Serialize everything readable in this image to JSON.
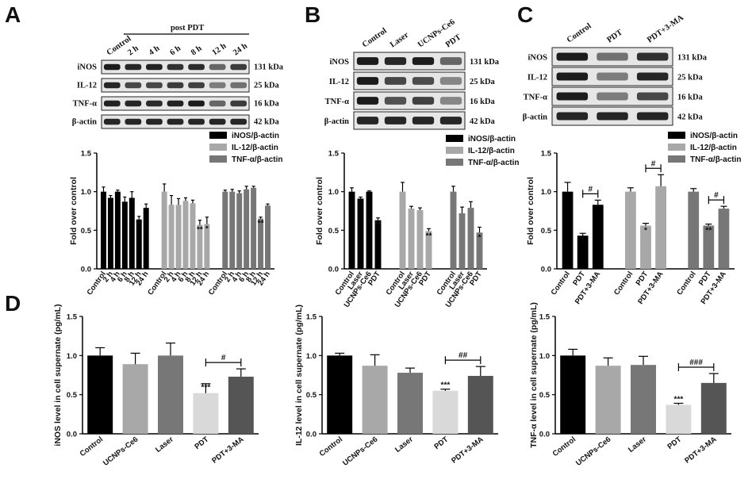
{
  "panel_labels": {
    "a": "A",
    "b": "B",
    "c": "C",
    "d": "D"
  },
  "blots": {
    "a": {
      "lanes": [
        "Control",
        "2 h",
        "4 h",
        "6 h",
        "8 h",
        "12 h",
        "24 h"
      ],
      "group_label": "post PDT",
      "rows": [
        {
          "name": "iNOS",
          "kda": "131 kDa"
        },
        {
          "name": "IL-12",
          "kda": "25 kDa"
        },
        {
          "name": "TNF-α",
          "kda": "16 kDa"
        },
        {
          "name": "β-actin",
          "kda": "42 kDa"
        }
      ]
    },
    "b": {
      "lanes": [
        "Control",
        "Laser",
        "UCNPs-Ce6",
        "PDT"
      ],
      "rows": [
        {
          "name": "iNOS",
          "kda": "131 kDa"
        },
        {
          "name": "IL-12",
          "kda": "25 kDa"
        },
        {
          "name": "TNF-α",
          "kda": "16 kDa"
        },
        {
          "name": "β-actin",
          "kda": "42 kDa"
        }
      ]
    },
    "c": {
      "lanes": [
        "Control",
        "PDT",
        "PDT+3-MA"
      ],
      "rows": [
        {
          "name": "iNOS",
          "kda": "131 kDa"
        },
        {
          "name": "IL-12",
          "kda": "25 kDa"
        },
        {
          "name": "TNF-α",
          "kda": "16 kDa"
        },
        {
          "name": "β-actin",
          "kda": "42 kDa"
        }
      ]
    }
  },
  "chart_data": [
    {
      "id": "A",
      "type": "bar",
      "ylabel": "Fold over control",
      "ylim": [
        0,
        1.5
      ],
      "yticks": [
        "0.0",
        "0.5",
        "1.0",
        "1.5"
      ],
      "legend": [
        "iNOS/β-actin",
        "IL-12/β-actin",
        "TNF-α/β-actin"
      ],
      "categories": [
        "Control",
        "2 h",
        "4 h",
        "6 h",
        "8 h",
        "12 h",
        "24 h"
      ],
      "series": [
        {
          "name": "iNOS/β-actin",
          "color": "#000000",
          "values": [
            1.0,
            0.92,
            1.0,
            0.87,
            0.92,
            0.64,
            0.79
          ],
          "errors": [
            0.06,
            0.03,
            0.02,
            0.06,
            0.08,
            0.04,
            0.05
          ],
          "sig": [
            "",
            "",
            "",
            "",
            "",
            "**",
            ""
          ]
        },
        {
          "name": "IL-12/β-actin",
          "color": "#a8a8a8",
          "values": [
            1.0,
            0.83,
            0.83,
            0.88,
            0.85,
            0.57,
            0.58
          ],
          "errors": [
            0.1,
            0.12,
            0.08,
            0.04,
            0.04,
            0.06,
            0.09
          ],
          "sig": [
            "",
            "",
            "",
            "",
            "",
            "**",
            "*"
          ]
        },
        {
          "name": "TNF-α/β-actin",
          "color": "#777777",
          "values": [
            1.0,
            1.0,
            0.98,
            1.03,
            1.05,
            0.65,
            0.82
          ],
          "errors": [
            0.02,
            0.03,
            0.03,
            0.04,
            0.02,
            0.02,
            0.02
          ],
          "sig": [
            "",
            "",
            "",
            "",
            "",
            "**",
            ""
          ]
        }
      ]
    },
    {
      "id": "B",
      "type": "bar",
      "ylabel": "Fold over control",
      "ylim": [
        0,
        1.5
      ],
      "yticks": [
        "0.0",
        "0.5",
        "1.0",
        "1.5"
      ],
      "legend": [
        "iNOS/β-actin",
        "IL-12/β-actin",
        "TNF-α/β-actin"
      ],
      "categories": [
        "Control",
        "Laser",
        "UCNPs-Ce6",
        "PDT"
      ],
      "series": [
        {
          "name": "iNOS/β-actin",
          "color": "#000000",
          "values": [
            1.0,
            0.91,
            1.0,
            0.63
          ],
          "errors": [
            0.05,
            0.02,
            0.01,
            0.03
          ],
          "sig": [
            "",
            "",
            "",
            "**"
          ]
        },
        {
          "name": "IL-12/β-actin",
          "color": "#a8a8a8",
          "values": [
            1.0,
            0.78,
            0.76,
            0.49
          ],
          "errors": [
            0.12,
            0.03,
            0.03,
            0.03
          ],
          "sig": [
            "",
            "",
            "",
            "**"
          ]
        },
        {
          "name": "TNF-α/β-actin",
          "color": "#777777",
          "values": [
            1.0,
            0.72,
            0.79,
            0.47
          ],
          "errors": [
            0.07,
            0.08,
            0.08,
            0.07
          ],
          "sig": [
            "",
            "",
            "",
            "*"
          ]
        }
      ]
    },
    {
      "id": "C",
      "type": "bar",
      "ylabel": "Fold over control",
      "ylim": [
        0,
        1.5
      ],
      "yticks": [
        "0.0",
        "0.5",
        "1.0",
        "1.5"
      ],
      "legend": [
        "iNOS/β-actin",
        "IL-12/β-actin",
        "TNF-α/β-actin"
      ],
      "categories": [
        "Control",
        "PDT",
        "PDT+3-MA"
      ],
      "series": [
        {
          "name": "iNOS/β-actin",
          "color": "#000000",
          "values": [
            1.0,
            0.43,
            0.83
          ],
          "errors": [
            0.12,
            0.03,
            0.06
          ],
          "sig": [
            "",
            "*",
            ""
          ],
          "bracket": "#"
        },
        {
          "name": "IL-12/β-actin",
          "color": "#a8a8a8",
          "values": [
            1.0,
            0.56,
            1.07
          ],
          "errors": [
            0.05,
            0.03,
            0.15
          ],
          "sig": [
            "",
            "*",
            ""
          ],
          "bracket": "#"
        },
        {
          "name": "TNF-α/β-actin",
          "color": "#777777",
          "values": [
            1.0,
            0.56,
            0.78
          ],
          "errors": [
            0.04,
            0.02,
            0.03
          ],
          "sig": [
            "",
            "**",
            ""
          ],
          "bracket": "#"
        }
      ]
    },
    {
      "id": "D1",
      "type": "bar",
      "ylabel": "iNOS level in cell supernate (pg/mL)",
      "ylim": [
        0,
        1.5
      ],
      "yticks": [
        "0.0",
        "0.5",
        "1.0",
        "1.5"
      ],
      "categories": [
        "Control",
        "UCNPs-Ce6",
        "Laser",
        "PDT",
        "PDT+3-MA"
      ],
      "values": [
        1.0,
        0.89,
        1.0,
        0.52,
        0.73
      ],
      "errors": [
        0.1,
        0.14,
        0.16,
        0.12,
        0.1
      ],
      "colors": [
        "#000000",
        "#a8a8a8",
        "#777777",
        "#d9d9d9",
        "#555555"
      ],
      "sig": [
        "",
        "",
        "",
        "***",
        ""
      ],
      "bracket": "#"
    },
    {
      "id": "D2",
      "type": "bar",
      "ylabel": "IL-12 level in cell supernate (pg/mL)",
      "ylim": [
        0,
        1.5
      ],
      "yticks": [
        "0.0",
        "0.5",
        "1.0",
        "1.5"
      ],
      "categories": [
        "Control",
        "UCNPs-Ce6",
        "Laser",
        "PDT",
        "PDT+3-MA"
      ],
      "values": [
        1.0,
        0.87,
        0.78,
        0.55,
        0.74
      ],
      "errors": [
        0.03,
        0.14,
        0.06,
        0.02,
        0.12
      ],
      "colors": [
        "#000000",
        "#a8a8a8",
        "#777777",
        "#d9d9d9",
        "#555555"
      ],
      "sig": [
        "",
        "",
        "",
        "***",
        ""
      ],
      "bracket": "##"
    },
    {
      "id": "D3",
      "type": "bar",
      "ylabel": "TNF-α level in cell supernate (pg/mL)",
      "ylim": [
        0,
        1.5
      ],
      "yticks": [
        "0.0",
        "0.5",
        "1.0",
        "1.5"
      ],
      "categories": [
        "Control",
        "UCNPs-Ce6",
        "Laser",
        "PDT",
        "PDT+3-MA"
      ],
      "values": [
        1.0,
        0.87,
        0.88,
        0.37,
        0.65
      ],
      "errors": [
        0.08,
        0.1,
        0.11,
        0.02,
        0.12
      ],
      "colors": [
        "#000000",
        "#a8a8a8",
        "#777777",
        "#d9d9d9",
        "#555555"
      ],
      "sig": [
        "",
        "",
        "",
        "***",
        ""
      ],
      "bracket": "###"
    }
  ]
}
